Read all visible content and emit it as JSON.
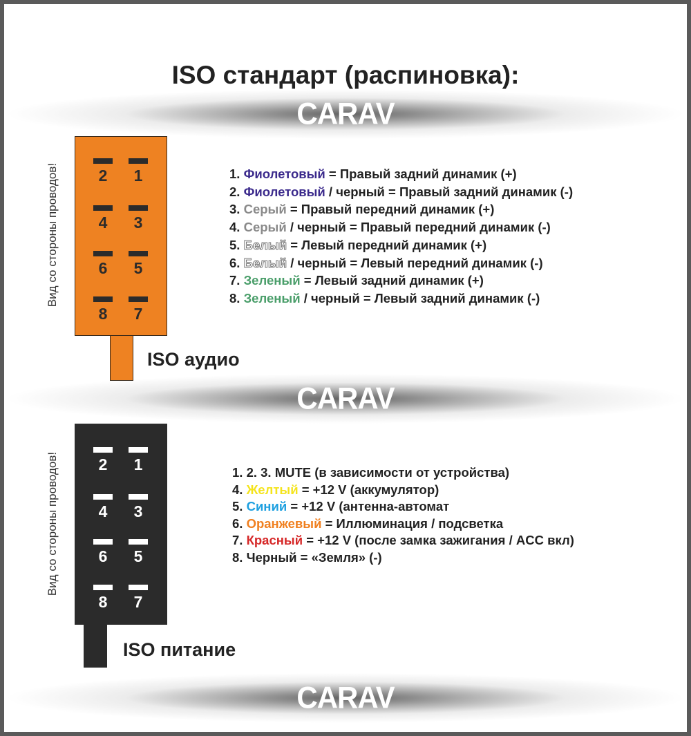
{
  "title": "ISO стандарт (распиновка):",
  "logo_text": "CARAV",
  "view_note": "Вид со стороны проводов!",
  "colors": {
    "audio_connector": "#ee8222",
    "power_connector": "#2b2b2b",
    "violet": "#3b2a8c",
    "gray": "#8a8a8a",
    "green": "#4a9e6a",
    "yellow": "#f4e41c",
    "blue": "#1ea0e0",
    "orange": "#f08020",
    "red": "#d62828"
  },
  "audio": {
    "label": "ISO аудио",
    "pins": [
      "2",
      "1",
      "4",
      "3",
      "6",
      "5",
      "8",
      "7"
    ],
    "items": [
      {
        "num": "1. ",
        "color_name": "Фиолетовый",
        "color": "#3b2a8c",
        "rest": " = Правый задний динамик (+)"
      },
      {
        "num": "2. ",
        "color_name": "Фиолетовый",
        "color": "#3b2a8c",
        "rest": " / черный = Правый задний динамик (-)"
      },
      {
        "num": "3. ",
        "color_name": "Серый",
        "color": "#8a8a8a",
        "rest": " = Правый передний динамик (+)"
      },
      {
        "num": "4. ",
        "color_name": "Серый",
        "color": "#8a8a8a",
        "rest": " / черный = Правый передний динамик (-)"
      },
      {
        "num": "5. ",
        "color_name": "Белый",
        "color": "outline",
        "rest": " = Левый передний динамик (+)"
      },
      {
        "num": "6. ",
        "color_name": "Белый",
        "color": "outline",
        "rest": " / черный = Левый передний динамик (-)"
      },
      {
        "num": "7. ",
        "color_name": "Зеленый",
        "color": "#4a9e6a",
        "rest": " = Левый задний динамик (+)"
      },
      {
        "num": "8. ",
        "color_name": "Зеленый",
        "color": "#4a9e6a",
        "rest": " / черный = Левый задний динамик (-)"
      }
    ]
  },
  "power": {
    "label": "ISO питание",
    "pins": [
      "2",
      "1",
      "4",
      "3",
      "6",
      "5",
      "8",
      "7"
    ],
    "items": [
      {
        "num": "1. 2. 3.  MUTE (в зависимости от устройства)",
        "color_name": "",
        "color": "",
        "rest": ""
      },
      {
        "num": "4. ",
        "color_name": "Желтый",
        "color": "#f4e41c",
        "rest": " = +12 V (аккумулятор)"
      },
      {
        "num": "5. ",
        "color_name": "Синий",
        "color": "#1ea0e0",
        "rest": " = +12 V (антенна-автомат"
      },
      {
        "num": "6. ",
        "color_name": "Оранжевый",
        "color": "#f08020",
        "rest": " = Иллюминация / подсветка"
      },
      {
        "num": "7. ",
        "color_name": "Красный",
        "color": "#d62828",
        "rest": " = +12 V (после замка зажигания / ACC вкл)"
      },
      {
        "num": "8. Черный = «Земля» (-)",
        "color_name": "",
        "color": "",
        "rest": ""
      }
    ]
  }
}
